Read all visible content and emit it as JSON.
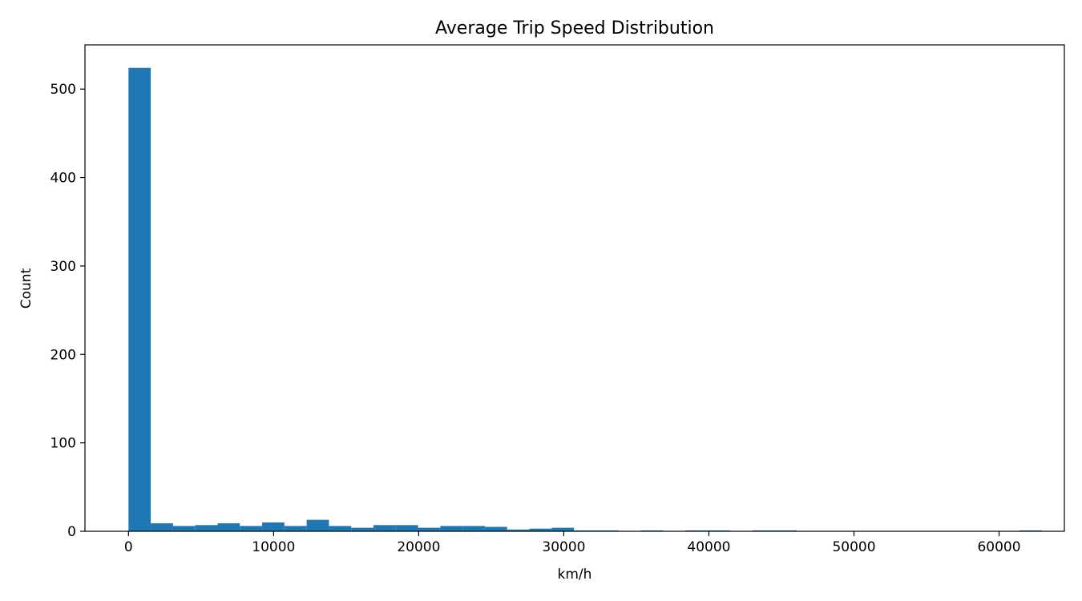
{
  "chart_data": {
    "type": "bar",
    "title": "Average Trip Speed Distribution",
    "xlabel": "km/h",
    "ylabel": "Count",
    "xlim": [
      -3000,
      64500
    ],
    "ylim": [
      0,
      550
    ],
    "xticks": [
      0,
      10000,
      20000,
      30000,
      40000,
      50000,
      60000
    ],
    "xtick_labels": [
      "0",
      "10000",
      "20000",
      "30000",
      "40000",
      "50000",
      "60000"
    ],
    "yticks": [
      0,
      100,
      200,
      300,
      400,
      500
    ],
    "ytick_labels": [
      "0",
      "100",
      "200",
      "300",
      "400",
      "500"
    ],
    "bin_start": 0,
    "bin_width": 1535,
    "bar_color": "#1f77b4",
    "grid": false,
    "values": [
      524,
      9,
      6,
      7,
      9,
      6,
      10,
      6,
      13,
      6,
      4,
      7,
      7,
      4,
      6,
      6,
      5,
      2,
      3,
      4,
      1,
      1,
      0,
      1,
      0,
      1,
      1,
      0,
      1,
      1,
      0,
      0,
      0,
      0,
      0,
      0,
      0,
      0,
      0,
      0,
      1
    ]
  }
}
